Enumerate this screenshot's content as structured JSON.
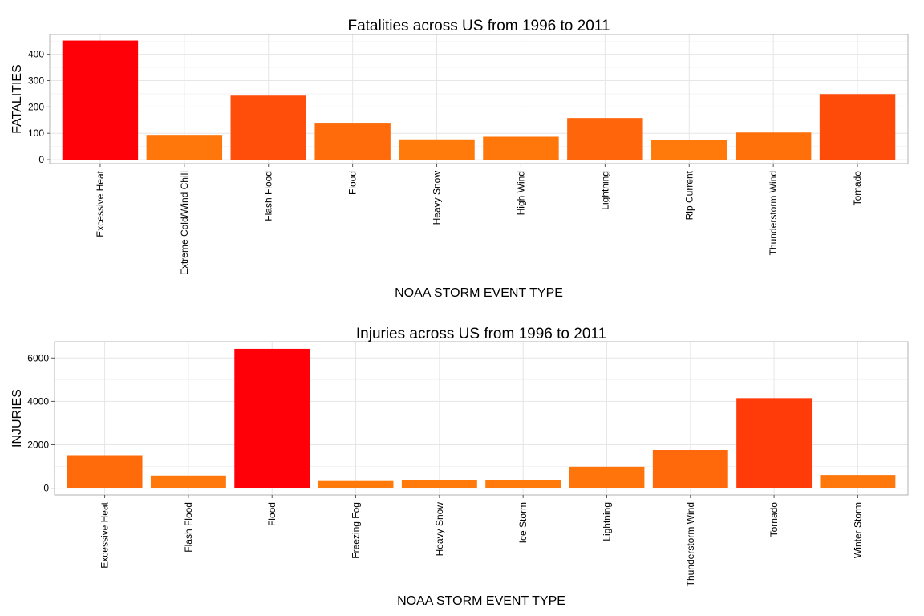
{
  "chart_data": [
    {
      "type": "bar",
      "title": "Fatalities across US from 1996 to 2011",
      "xlabel": "NOAA STORM EVENT TYPE",
      "ylabel": "FATALITIES",
      "categories": [
        "Excessive Heat",
        "Extreme Cold/Wind Chill",
        "Flash Flood",
        "Flood",
        "Heavy Snow",
        "High Wind",
        "Lightning",
        "Rip Current",
        "Thunderstorm Wind",
        "Tornado"
      ],
      "values": [
        452,
        94,
        243,
        140,
        77,
        87,
        158,
        75,
        103,
        249
      ],
      "colors": [
        "#FF0008",
        "#FF760B",
        "#FF4D0A",
        "#FF6B0B",
        "#FF790B",
        "#FF770B",
        "#FF650B",
        "#FF790B",
        "#FF700B",
        "#FF4B0A"
      ],
      "yticks": [
        0,
        100,
        200,
        300,
        400
      ],
      "ylim": [
        -15,
        475
      ],
      "grid": true
    },
    {
      "type": "bar",
      "title": "Injuries across US from 1996 to 2011",
      "xlabel": "NOAA STORM EVENT TYPE",
      "ylabel": "INJURIES",
      "categories": [
        "Excessive Heat",
        "Flash Flood",
        "Flood",
        "Freezing Fog",
        "Heavy Snow",
        "Ice Storm",
        "Lightning",
        "Thunderstorm Wind",
        "Tornado",
        "Winter Storm"
      ],
      "values": [
        1520,
        585,
        6420,
        330,
        380,
        390,
        990,
        1760,
        4150,
        610
      ],
      "colors": [
        "#FF6B0B",
        "#FF780B",
        "#FF0008",
        "#FF7A0B",
        "#FF7A0B",
        "#FF7A0B",
        "#FF750B",
        "#FF690B",
        "#FF3B09",
        "#FF780B"
      ],
      "yticks": [
        0,
        2000,
        4000,
        6000
      ],
      "ylim": [
        -310,
        6750
      ],
      "grid": true
    }
  ]
}
